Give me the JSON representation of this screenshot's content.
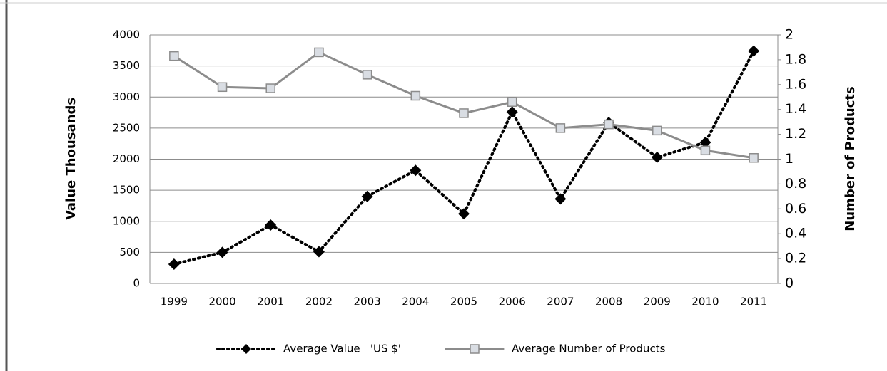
{
  "chart_data": {
    "type": "line",
    "y_label": "Value Thousands",
    "y2_label": "Number of Products",
    "categories": [
      "1999",
      "2000",
      "2001",
      "2002",
      "2003",
      "2004",
      "2005",
      "2006",
      "2007",
      "2008",
      "2009",
      "2010",
      "2011"
    ],
    "series": [
      {
        "name": "Average Value   'US $'",
        "color": "#000000",
        "values": [
          310,
          500,
          940,
          510,
          1400,
          1820,
          1120,
          2760,
          1360,
          2590,
          2030,
          2270,
          3740
        ]
      },
      {
        "name": "Average Number of Products",
        "color": "#8c8c8c",
        "axis": "y2",
        "values": [
          1.83,
          1.58,
          1.57,
          1.86,
          1.68,
          1.51,
          1.37,
          1.46,
          1.25,
          1.28,
          1.23,
          1.07,
          1.01
        ]
      }
    ],
    "ylim": [
      0,
      4000
    ],
    "yticks": [
      0,
      500,
      1000,
      1500,
      2000,
      2500,
      3000,
      3500,
      4000
    ],
    "y2lim": [
      0,
      2
    ],
    "y2ticks": [
      0,
      0.2,
      0.4,
      0.6,
      0.8,
      1,
      1.2,
      1.4,
      1.6,
      1.8,
      2
    ],
    "grid": true
  }
}
